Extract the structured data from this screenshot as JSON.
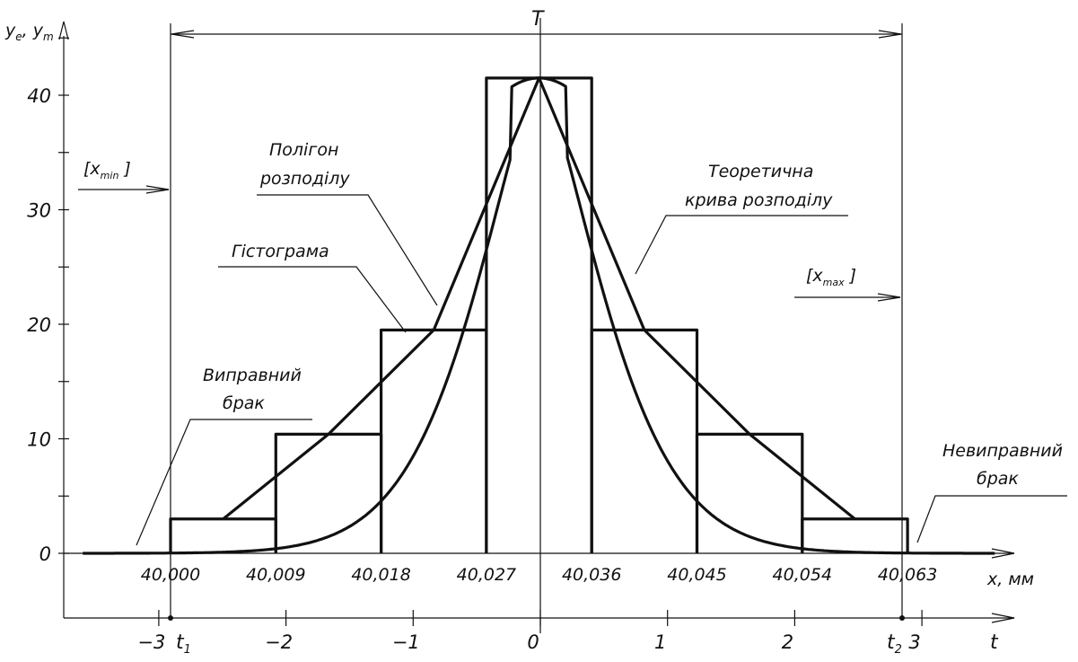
{
  "chart_data": {
    "type": "bar",
    "y_axis_label": "y",
    "y_axis_subscripts": [
      "e",
      "m"
    ],
    "y_ticks": [
      "0",
      "10",
      "20",
      "30",
      "40"
    ],
    "x_axis_label": "x, мм",
    "x_ticks": [
      "40,000",
      "40,009",
      "40,018",
      "40,027",
      "40,036",
      "40,045",
      "40,054",
      "40,063"
    ],
    "t_axis_label": "t",
    "t_ticks": [
      "−3",
      "−2",
      "−1",
      "0",
      "1",
      "2",
      "3"
    ],
    "t1_label": "t",
    "t1_sub": "1",
    "t2_label": "t",
    "t2_sub": "2",
    "tolerance_label": "T",
    "x_min_label": "[x",
    "x_min_sub": "min",
    "x_max_label": "[x",
    "x_max_sub": "max",
    "bracket_close": "]",
    "histogram": {
      "bin_edges": [
        40.0,
        40.009,
        40.018,
        40.027,
        40.036,
        40.045,
        40.054,
        40.063
      ],
      "values": [
        3,
        10.4,
        19.5,
        41.5,
        19.5,
        10.4,
        3
      ]
    },
    "polygon": {
      "x": [
        40.0045,
        40.0135,
        40.0225,
        40.0315,
        40.0405,
        40.0495,
        40.0585
      ],
      "y": [
        3,
        10.4,
        19.5,
        41.5,
        19.5,
        10.4,
        3
      ]
    },
    "theoretical_curve": {
      "mean": 40.0315,
      "peak": 41.5,
      "x_range": [
        39.9925,
        40.0705
      ]
    },
    "annotations": {
      "polygon": [
        "Полігон",
        "розподілу"
      ],
      "theoretical": [
        "Теоретична",
        "крива розподілу"
      ],
      "histogram": "Гістограма",
      "correctable": [
        "Виправний",
        "брак"
      ],
      "uncorrectable": [
        "Невиправний",
        "брак"
      ]
    },
    "ylim": [
      0,
      45
    ],
    "grid": false
  }
}
